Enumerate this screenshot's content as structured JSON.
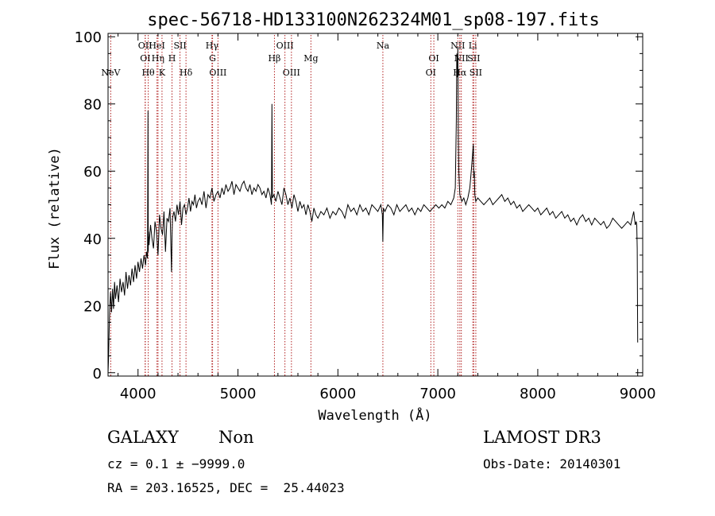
{
  "chart_data": {
    "type": "line",
    "title": "spec-56718-HD133100N262324M01_sp08-197.fits",
    "xlabel": "Wavelength (Å)",
    "ylabel": "Flux (relative)",
    "xlim": [
      3700,
      9050
    ],
    "ylim": [
      -1,
      101
    ],
    "xticks": [
      4000,
      5000,
      6000,
      7000,
      8000,
      9000
    ],
    "yticks": [
      0,
      20,
      40,
      60,
      80,
      100
    ],
    "grid": false,
    "line_color": "#000000",
    "marker_color": "#b22222",
    "series": [
      {
        "x": [
          3700,
          3705,
          3712,
          3718,
          3725,
          3735,
          3745,
          3755,
          3765,
          3775,
          3790,
          3805,
          3820,
          3835,
          3850,
          3865,
          3880,
          3895,
          3910,
          3925,
          3940,
          3955,
          3970,
          3985,
          4000,
          4015,
          4030,
          4045,
          4060,
          4075,
          4085,
          4095,
          4100,
          4102,
          4105,
          4110,
          4125,
          4140,
          4155,
          4170,
          4185,
          4200,
          4215,
          4230,
          4245,
          4260,
          4275,
          4290,
          4305,
          4320,
          4335,
          4340,
          4345,
          4360,
          4375,
          4390,
          4405,
          4420,
          4435,
          4450,
          4465,
          4480,
          4495,
          4510,
          4525,
          4540,
          4555,
          4570,
          4585,
          4600,
          4620,
          4640,
          4660,
          4680,
          4700,
          4720,
          4740,
          4760,
          4780,
          4800,
          4820,
          4840,
          4860,
          4880,
          4900,
          4920,
          4940,
          4960,
          4980,
          5000,
          5020,
          5040,
          5060,
          5080,
          5100,
          5120,
          5140,
          5160,
          5180,
          5200,
          5220,
          5240,
          5260,
          5280,
          5300,
          5320,
          5335,
          5340,
          5345,
          5360,
          5380,
          5400,
          5420,
          5440,
          5460,
          5480,
          5500,
          5520,
          5540,
          5560,
          5580,
          5600,
          5620,
          5640,
          5660,
          5680,
          5700,
          5720,
          5740,
          5760,
          5780,
          5800,
          5830,
          5860,
          5890,
          5920,
          5950,
          5980,
          6010,
          6040,
          6070,
          6100,
          6130,
          6160,
          6190,
          6220,
          6250,
          6280,
          6310,
          6340,
          6370,
          6400,
          6430,
          6445,
          6450,
          6455,
          6470,
          6500,
          6530,
          6560,
          6590,
          6620,
          6650,
          6680,
          6710,
          6740,
          6770,
          6800,
          6830,
          6860,
          6890,
          6920,
          6950,
          6980,
          7010,
          7040,
          7070,
          7100,
          7130,
          7160,
          7175,
          7185,
          7190,
          7195,
          7200,
          7205,
          7210,
          7220,
          7240,
          7260,
          7280,
          7300,
          7320,
          7340,
          7355,
          7360,
          7365,
          7370,
          7380,
          7400,
          7430,
          7460,
          7490,
          7520,
          7550,
          7580,
          7610,
          7640,
          7670,
          7700,
          7730,
          7760,
          7790,
          7820,
          7850,
          7880,
          7910,
          7940,
          7970,
          8000,
          8030,
          8060,
          8090,
          8120,
          8150,
          8180,
          8210,
          8240,
          8270,
          8300,
          8330,
          8360,
          8390,
          8420,
          8450,
          8480,
          8510,
          8540,
          8570,
          8600,
          8630,
          8660,
          8690,
          8720,
          8750,
          8780,
          8810,
          8840,
          8870,
          8900,
          8930,
          8960,
          8975,
          8985,
          8990,
          8995,
          9000
        ],
        "y": [
          0,
          4,
          14,
          20,
          24,
          18,
          25,
          19,
          27,
          22,
          26,
          21,
          28,
          24,
          27,
          23,
          30,
          25,
          29,
          26,
          31,
          27,
          32,
          28,
          33,
          30,
          34,
          31,
          35,
          32,
          36,
          34,
          78,
          36,
          42,
          38,
          44,
          40,
          37,
          45,
          42,
          35,
          47,
          43,
          41,
          48,
          36,
          46,
          45,
          49,
          30,
          40,
          46,
          48,
          45,
          50,
          47,
          51,
          44,
          49,
          50,
          47,
          49,
          52,
          48,
          51,
          50,
          53,
          49,
          51,
          52,
          50,
          54,
          49,
          53,
          52,
          55,
          51,
          53,
          54,
          52,
          55,
          53,
          56,
          54,
          55,
          57,
          53,
          56,
          55,
          54,
          56,
          57,
          55,
          54,
          56,
          53,
          55,
          54,
          56,
          55,
          53,
          54,
          52,
          55,
          53,
          50,
          80,
          52,
          53,
          51,
          54,
          52,
          50,
          55,
          53,
          50,
          52,
          49,
          53,
          51,
          48,
          51,
          49,
          50,
          47,
          50,
          48,
          45,
          49,
          47,
          46,
          48,
          47,
          49,
          46,
          48,
          47,
          49,
          48,
          46,
          50,
          48,
          49,
          47,
          50,
          48,
          49,
          47,
          50,
          49,
          48,
          50,
          47,
          39,
          49,
          48,
          50,
          49,
          47,
          50,
          48,
          49,
          50,
          48,
          49,
          47,
          49,
          48,
          50,
          49,
          48,
          49,
          50,
          49,
          50,
          49,
          51,
          50,
          52,
          55,
          75,
          95,
          88,
          97,
          70,
          60,
          53,
          51,
          52,
          50,
          52,
          55,
          62,
          68,
          58,
          60,
          53,
          51,
          52,
          51,
          50,
          51,
          52,
          50,
          51,
          52,
          53,
          51,
          52,
          50,
          51,
          49,
          50,
          48,
          49,
          50,
          49,
          48,
          49,
          47,
          48,
          49,
          47,
          48,
          46,
          47,
          48,
          46,
          47,
          45,
          46,
          44,
          46,
          47,
          45,
          46,
          44,
          46,
          45,
          44,
          45,
          43,
          44,
          46,
          45,
          44,
          43,
          44,
          45,
          44,
          48,
          44,
          45,
          44,
          37,
          9
        ]
      }
    ],
    "lines": [
      {
        "x": 3727,
        "label": "NeV",
        "row": 3
      },
      {
        "x": 4071,
        "label": "OII",
        "row": 1
      },
      {
        "x": 4073,
        "label": "OI",
        "row": 2
      },
      {
        "x": 4102,
        "label": "Hθ",
        "row": 3
      },
      {
        "x": 4190,
        "label": "HeI",
        "row": 1
      },
      {
        "x": 4200,
        "label": "Hη",
        "row": 2
      },
      {
        "x": 4240,
        "label": "K",
        "row": 3
      },
      {
        "x": 4340,
        "label": "H",
        "row": 2
      },
      {
        "x": 4420,
        "label": "SII",
        "row": 1
      },
      {
        "x": 4480,
        "label": "Hδ",
        "row": 3
      },
      {
        "x": 4740,
        "label": "Hγ",
        "row": 1
      },
      {
        "x": 4746,
        "label": "G",
        "row": 2
      },
      {
        "x": 4800,
        "label": "OIII",
        "row": 3
      },
      {
        "x": 5365,
        "label": "Hβ",
        "row": 2
      },
      {
        "x": 5470,
        "label": "OIII",
        "row": 1
      },
      {
        "x": 5535,
        "label": "OIII",
        "row": 3
      },
      {
        "x": 5730,
        "label": "Mg",
        "row": 2
      },
      {
        "x": 6450,
        "label": "Na",
        "row": 1
      },
      {
        "x": 6960,
        "label": "OI",
        "row": 2
      },
      {
        "x": 6930,
        "label": "OI",
        "row": 3
      },
      {
        "x": 7200,
        "label": "NII",
        "row": 1
      },
      {
        "x": 7235,
        "label": "NII",
        "row": 2
      },
      {
        "x": 7220,
        "label": "Hα",
        "row": 3
      },
      {
        "x": 7350,
        "label": "Li",
        "row": 1
      },
      {
        "x": 7360,
        "label": "SII",
        "row": 2
      },
      {
        "x": 7380,
        "label": "SII",
        "row": 3
      }
    ]
  },
  "footer": {
    "class": "GALAXY",
    "subclass": "Non",
    "survey": "LAMOST DR3",
    "cz": "cz = 0.1 ± −9999.0",
    "obs_date": "Obs-Date: 20140301",
    "coords": "RA = 203.16525, DEC =  25.44023"
  }
}
